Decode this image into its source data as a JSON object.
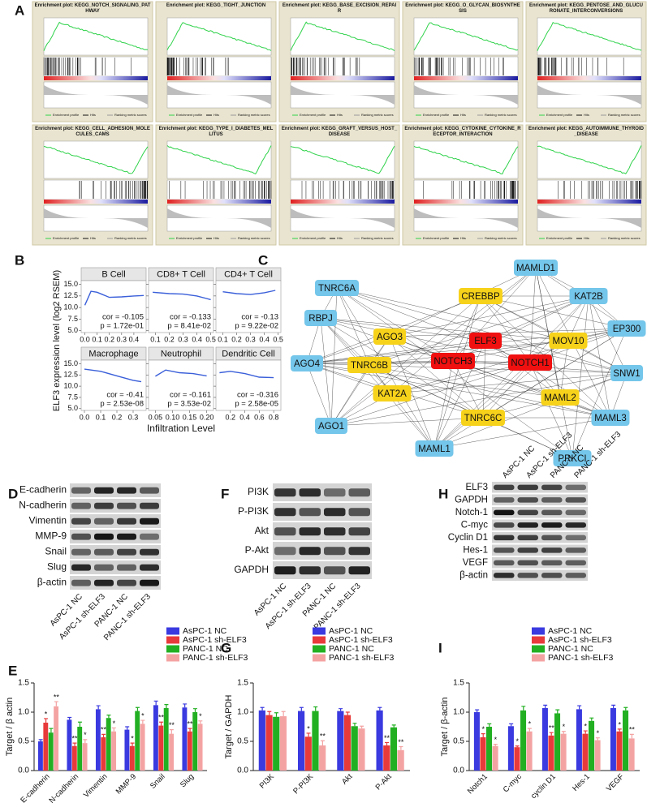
{
  "panel_labels": [
    "A",
    "B",
    "C",
    "D",
    "E",
    "F",
    "G",
    "H",
    "I"
  ],
  "gsea": {
    "legend": [
      "Enrichment profile",
      "Hits",
      "Ranking metric scores"
    ],
    "titles": [
      "Enrichment plot: KEGG_NOTCH_SIGNALING_PATHWAY",
      "Enrichment plot: KEGG_TIGHT_JUNCTION",
      "Enrichment plot: KEGG_BASE_EXCISION_REPAIR",
      "Enrichment plot: KEGG_O_GLYCAN_BIOSYNTHESIS",
      "Enrichment plot: KEGG_PENTOSE_AND_GLUCURONATE_INTERCONVERSIONS",
      "Enrichment plot: KEGG_CELL_ADHESION_MOLECULES_CAMS",
      "Enrichment plot: KEGG_TYPE_I_DIABETES_MELLITUS",
      "Enrichment plot: KEGG_GRAFT_VERSUS_HOST_DISEASE",
      "Enrichment plot: KEGG_CYTOKINE_CYTOKINE_RECEPTOR_INTERACTION",
      "Enrichment plot: KEGG_AUTOIMMUNE_THYROID_DISEASE"
    ]
  },
  "network": {
    "nodes": [
      {
        "label": "TNRC6A",
        "color": "#74c6ea"
      },
      {
        "label": "MAMLD1",
        "color": "#74c6ea"
      },
      {
        "label": "KAT2B",
        "color": "#74c6ea"
      },
      {
        "label": "RBPJ",
        "color": "#74c6ea"
      },
      {
        "label": "EP300",
        "color": "#74c6ea"
      },
      {
        "label": "CREBBP",
        "color": "#f7d21b"
      },
      {
        "label": "AGO3",
        "color": "#f7d21b"
      },
      {
        "label": "MOV10",
        "color": "#f7d21b"
      },
      {
        "label": "ELF3",
        "color": "#f01010"
      },
      {
        "label": "NOTCH3",
        "color": "#f01010"
      },
      {
        "label": "NOTCH1",
        "color": "#f01010"
      },
      {
        "label": "AGO4",
        "color": "#74c6ea"
      },
      {
        "label": "SNW1",
        "color": "#74c6ea"
      },
      {
        "label": "TNRC6B",
        "color": "#f7d21b"
      },
      {
        "label": "KAT2A",
        "color": "#f7d21b"
      },
      {
        "label": "MAML2",
        "color": "#f7d21b"
      },
      {
        "label": "TNRC6C",
        "color": "#f7d21b"
      },
      {
        "label": "MAML3",
        "color": "#74c6ea"
      },
      {
        "label": "AGO1",
        "color": "#74c6ea"
      },
      {
        "label": "MAML1",
        "color": "#74c6ea"
      },
      {
        "label": "PRKCI",
        "color": "#74c6ea"
      }
    ]
  },
  "blots": {
    "samples": [
      "AsPC-1 NC",
      "AsPC-1 sh-ELF3",
      "PANC-1 NC",
      "PANC-1 sh-ELF3"
    ],
    "panels": [
      {
        "proteins": [
          "E-cadherin",
          "N-cadherin",
          "Vimentin",
          "MMP-9",
          "Snail",
          "Slug",
          "β-actin"
        ]
      },
      {
        "proteins": [
          "PI3K",
          "P-PI3K",
          "Akt",
          "P-Akt",
          "GAPDH"
        ]
      },
      {
        "proteins": [
          "ELF3",
          "GAPDH",
          "Notch-1",
          "C-myc",
          "Cyclin D1",
          "Hes-1",
          "VEGF",
          "β-actin"
        ]
      }
    ]
  },
  "chart_data": [
    {
      "type": "scatter",
      "y_label": "ELF3 expression level (log2 RSEM)",
      "x_label": "Infiltration Level",
      "line_color": "#3a5fd9",
      "ylim": [
        4.6,
        15.8
      ],
      "yticks": [
        {
          "value": 5,
          "label": "5.0"
        },
        7.5,
        {
          "value": 10,
          "label": "10.0"
        },
        12.5,
        {
          "value": 15,
          "label": "15.0"
        }
      ],
      "panels": [
        {
          "title": "B Cell",
          "xlim": [
            -0.03,
            0.5
          ],
          "xticks": [
            {
              "value": 0,
              "label": "0.0"
            },
            0.1,
            0.2,
            0.3,
            0.4
          ],
          "cor": "cor = -0.105",
          "p": "p = 1.72e-01",
          "fit_x": [
            0,
            0.05,
            0.1,
            0.2,
            0.3,
            0.4,
            0.48
          ],
          "fit_y": [
            10.5,
            13.5,
            13.3,
            12.2,
            12.3,
            12.5,
            12.6
          ]
        },
        {
          "title": "CD8+ T Cell",
          "xlim": [
            0.05,
            0.52
          ],
          "xticks": [
            0.1,
            0.2,
            0.3,
            0.4,
            0.5
          ],
          "cor": "cor = -0.133",
          "p": "p = 8.41e-02",
          "fit_x": [
            0.08,
            0.2,
            0.3,
            0.4,
            0.5
          ],
          "fit_y": [
            13.3,
            13.0,
            12.9,
            12.5,
            11.7
          ]
        },
        {
          "title": "CD4+ T Cell",
          "xlim": [
            0.05,
            0.52
          ],
          "xticks": [
            0.1,
            0.2,
            0.3,
            0.4,
            0.5
          ],
          "cor": "cor = -0.13",
          "p": "p = 9.22e-02",
          "fit_x": [
            0.1,
            0.2,
            0.3,
            0.4,
            0.48
          ],
          "fit_y": [
            13.4,
            13.0,
            12.8,
            13.2,
            13.7
          ]
        },
        {
          "title": "Macrophage",
          "xlim": [
            -0.02,
            0.38
          ],
          "xticks": [
            {
              "value": 0,
              "label": "0.0"
            },
            0.1,
            0.2,
            0.3
          ],
          "cor": "cor = -0.41",
          "p": "p = 2.53e-08",
          "fit_x": [
            0,
            0.1,
            0.2,
            0.3,
            0.35
          ],
          "fit_y": [
            13.8,
            13.3,
            12.3,
            11.3,
            11.0
          ]
        },
        {
          "title": "Neutrophil",
          "xlim": [
            0.03,
            0.22
          ],
          "xticks": [
            0.05,
            {
              "value": 0.1,
              "label": "0.10"
            },
            0.15,
            {
              "value": 0.2,
              "label": "0.20"
            }
          ],
          "cor": "cor = -0.161",
          "p": "p = 3.53e-02",
          "fit_x": [
            0.05,
            0.08,
            0.12,
            0.16,
            0.2
          ],
          "fit_y": [
            12.2,
            13.6,
            13.0,
            12.8,
            12.3
          ]
        },
        {
          "title": "Dendritic Cell",
          "xlim": [
            0,
            0.9
          ],
          "xticks": [
            0.2,
            0.4,
            0.6,
            0.8
          ],
          "cor": "cor = -0.316",
          "p": "p = 2.58e-05",
          "fit_x": [
            0.05,
            0.2,
            0.4,
            0.6,
            0.8
          ],
          "fit_y": [
            13.0,
            13.3,
            12.8,
            12.0,
            11.9
          ]
        }
      ]
    },
    {
      "type": "bar",
      "y_label": "Target / β actin",
      "categories": [
        "E-cadherin",
        "N-cadherin",
        "Vimentin",
        "MMP-9",
        "Snail",
        "Slug"
      ],
      "ylim": [
        0,
        1.5
      ],
      "yticks": [
        {
          "value": 0,
          "label": "0.0"
        },
        0.5,
        {
          "value": 1,
          "label": "1.0"
        },
        1.5
      ],
      "series": [
        {
          "name": "AsPC-1 NC",
          "color": "#3a3ae0",
          "values": [
            0.5,
            0.87,
            1.05,
            0.7,
            1.12,
            1.08
          ],
          "errors": [
            0.03,
            0.04,
            0.06,
            0.05,
            0.07,
            0.06
          ]
        },
        {
          "name": "AsPC-1 sh-ELF3",
          "color": "#e83a3a",
          "values": [
            0.82,
            0.42,
            0.57,
            0.42,
            0.77,
            0.67
          ],
          "errors": [
            0.07,
            0.05,
            0.05,
            0.05,
            0.06,
            0.05
          ],
          "annotations": [
            "*",
            "**",
            "**",
            "*",
            "**",
            "**"
          ]
        },
        {
          "name": "PANC-1 NC",
          "color": "#22b022",
          "values": [
            0.65,
            0.75,
            0.9,
            1.02,
            1.07,
            1.0
          ],
          "errors": [
            0.07,
            0.08,
            0.05,
            0.06,
            0.06,
            0.06
          ]
        },
        {
          "name": "PANC-1 sh-ELF3",
          "color": "#f4a3a3",
          "values": [
            1.1,
            0.47,
            0.67,
            0.8,
            0.63,
            0.8
          ],
          "errors": [
            0.08,
            0.06,
            0.06,
            0.06,
            0.07,
            0.05
          ],
          "annotations": [
            "**",
            "*",
            "*",
            "*",
            "**",
            "*"
          ]
        }
      ]
    },
    {
      "type": "bar",
      "y_label": "Target / GAPDH",
      "categories": [
        "PI3K",
        "P-PI3K",
        "Akt",
        "P-Akt"
      ],
      "ylim": [
        0,
        1.5
      ],
      "yticks": [
        {
          "value": 0,
          "label": "0.0"
        },
        0.5,
        {
          "value": 1,
          "label": "1.0"
        },
        1.5
      ],
      "series": [
        {
          "name": "AsPC-1 NC",
          "color": "#3a3ae0",
          "values": [
            1.03,
            1.02,
            1.02,
            1.03
          ],
          "errors": [
            0.05,
            0.06,
            0.04,
            0.05
          ]
        },
        {
          "name": "AsPC-1 sh-ELF3",
          "color": "#e83a3a",
          "values": [
            0.95,
            0.58,
            0.95,
            0.43
          ],
          "errors": [
            0.06,
            0.06,
            0.05,
            0.05
          ],
          "annotations": [
            null,
            "*",
            null,
            "**"
          ]
        },
        {
          "name": "PANC-1 NC",
          "color": "#22b022",
          "values": [
            0.92,
            1.02,
            0.76,
            0.74
          ],
          "errors": [
            0.07,
            0.07,
            0.05,
            0.04
          ]
        },
        {
          "name": "PANC-1 sh-ELF3",
          "color": "#f4a3a3",
          "values": [
            0.93,
            0.43,
            0.72,
            0.35
          ],
          "errors": [
            0.08,
            0.08,
            0.04,
            0.06
          ],
          "annotations": [
            null,
            "**",
            null,
            "**"
          ]
        }
      ]
    },
    {
      "type": "bar",
      "y_label": "Target / β-actin",
      "categories": [
        "Notch1",
        "C-myc",
        "cyclin D1",
        "Hes-1",
        "VEGF"
      ],
      "ylim": [
        0,
        1.5
      ],
      "yticks": [
        {
          "value": 0,
          "label": "0.0"
        },
        0.5,
        {
          "value": 1,
          "label": "1.0"
        },
        1.5
      ],
      "series": [
        {
          "name": "AsPC-1 NC",
          "color": "#3a3ae0",
          "values": [
            1.0,
            0.76,
            1.07,
            1.05,
            1.07
          ],
          "errors": [
            0.04,
            0.04,
            0.05,
            0.06,
            0.05
          ]
        },
        {
          "name": "AsPC-1 sh-ELF3",
          "color": "#e83a3a",
          "values": [
            0.57,
            0.4,
            0.6,
            0.63,
            0.67
          ],
          "errors": [
            0.06,
            0.02,
            0.05,
            0.05,
            0.04
          ],
          "annotations": [
            "*",
            "*",
            "**",
            "*",
            "*"
          ]
        },
        {
          "name": "PANC-1 NC",
          "color": "#22b022",
          "values": [
            0.75,
            1.03,
            0.98,
            0.85,
            1.03
          ],
          "errors": [
            0.05,
            0.07,
            0.06,
            0.05,
            0.05
          ]
        },
        {
          "name": "PANC-1 sh-ELF3",
          "color": "#f4a3a3",
          "values": [
            0.42,
            0.67,
            0.63,
            0.52,
            0.55
          ],
          "errors": [
            0.03,
            0.05,
            0.04,
            0.04,
            0.07
          ],
          "annotations": [
            "*",
            "*",
            "*",
            "*",
            "**"
          ]
        }
      ]
    }
  ]
}
